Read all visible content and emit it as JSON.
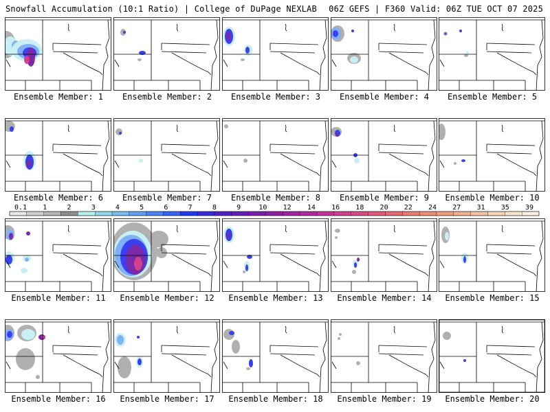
{
  "header": {
    "title_left": "Snowfall Accumulation (10:1 Ratio) | College of DuPage NEXLAB",
    "title_right": "06Z GEFS | F360 Valid: 06Z TUE OCT 07 2025"
  },
  "panel_label_prefix": "Ensemble Member: ",
  "members": [
    1,
    2,
    3,
    4,
    5,
    6,
    7,
    8,
    9,
    10,
    11,
    12,
    13,
    14,
    15,
    16,
    17,
    18,
    19,
    20
  ],
  "colorbar": {
    "labels": [
      "0.1",
      "1",
      "2",
      "3",
      "4",
      "5",
      "6",
      "7",
      "8",
      "9",
      "10",
      "12",
      "14",
      "16",
      "18",
      "20",
      "22",
      "24",
      "27",
      "31",
      "35",
      "39"
    ],
    "colors": [
      "#e6e6e6",
      "#cfcfcf",
      "#b5b5b5",
      "#8f8f8f",
      "#b8f0ee",
      "#8fd8ec",
      "#78bff0",
      "#5fa2f3",
      "#4a84f5",
      "#3665f5",
      "#1e3cf0",
      "#3a2ad8",
      "#4e22c6",
      "#6420b8",
      "#7a1eb0",
      "#8e1ea8",
      "#a024a4",
      "#b22aa2",
      "#c43498",
      "#d0408e",
      "#d84c86",
      "#e05a7e",
      "#e66876",
      "#ea7a72",
      "#ee8c74",
      "#f09e80",
      "#f2b090",
      "#f4c2a4",
      "#f6d4b8",
      "#f8e4cc",
      "#faf0e0"
    ]
  },
  "legend_colors": {
    "light": "#c8f0f4",
    "blue": "#7fb0f8",
    "dark": "#3a3ff0",
    "purple": "#7a2aa8",
    "pink": "#d0408e",
    "gray": "#b0b0b0"
  }
}
